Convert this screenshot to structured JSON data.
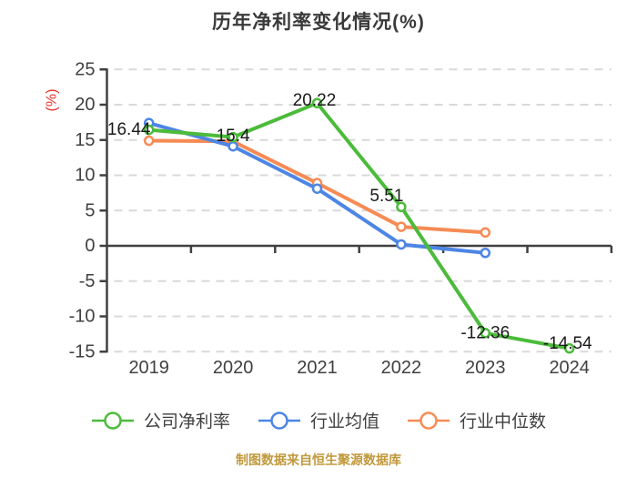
{
  "footer": {
    "source_note": "制图数据来自恒生聚源数据库"
  },
  "colors": {
    "company": "#4cbb3b",
    "industry_mean": "#4d86e4",
    "industry_median": "#f68b55",
    "axis": "#404040",
    "grid": "#d9d9d9",
    "ylabel_red": "#e5342b",
    "title_text": "#3a3a3a",
    "footer_gold": "#c0993c",
    "label_text": "#1a1a1a"
  },
  "chart_data": {
    "type": "line",
    "title": "历年净利率变化情况(%)",
    "categories": [
      "2019",
      "2020",
      "2021",
      "2022",
      "2023",
      "2024"
    ],
    "series": [
      {
        "name": "公司净利率",
        "color": "#4cbb3b",
        "values": [
          16.44,
          15.4,
          20.22,
          5.51,
          -12.36,
          -14.54
        ],
        "labels": [
          "16.44",
          "15.4",
          "20.22",
          "5.51",
          "-12.36",
          "-14.54"
        ]
      },
      {
        "name": "行业均值",
        "color": "#4d86e4",
        "values": [
          17.4,
          14.1,
          8.1,
          0.2,
          -1.0,
          null
        ],
        "labels": []
      },
      {
        "name": "行业中位数",
        "color": "#f68b55",
        "values": [
          14.9,
          14.8,
          8.9,
          2.7,
          1.9,
          null
        ],
        "labels": []
      }
    ],
    "xlabel": "",
    "ylabel": "(%)",
    "ylim": [
      -15,
      25
    ],
    "yticks": [
      25,
      20,
      15,
      10,
      5,
      0,
      -5,
      -10,
      -15
    ],
    "grid": true,
    "grid_style": "dashed",
    "legend_position": "bottom"
  }
}
